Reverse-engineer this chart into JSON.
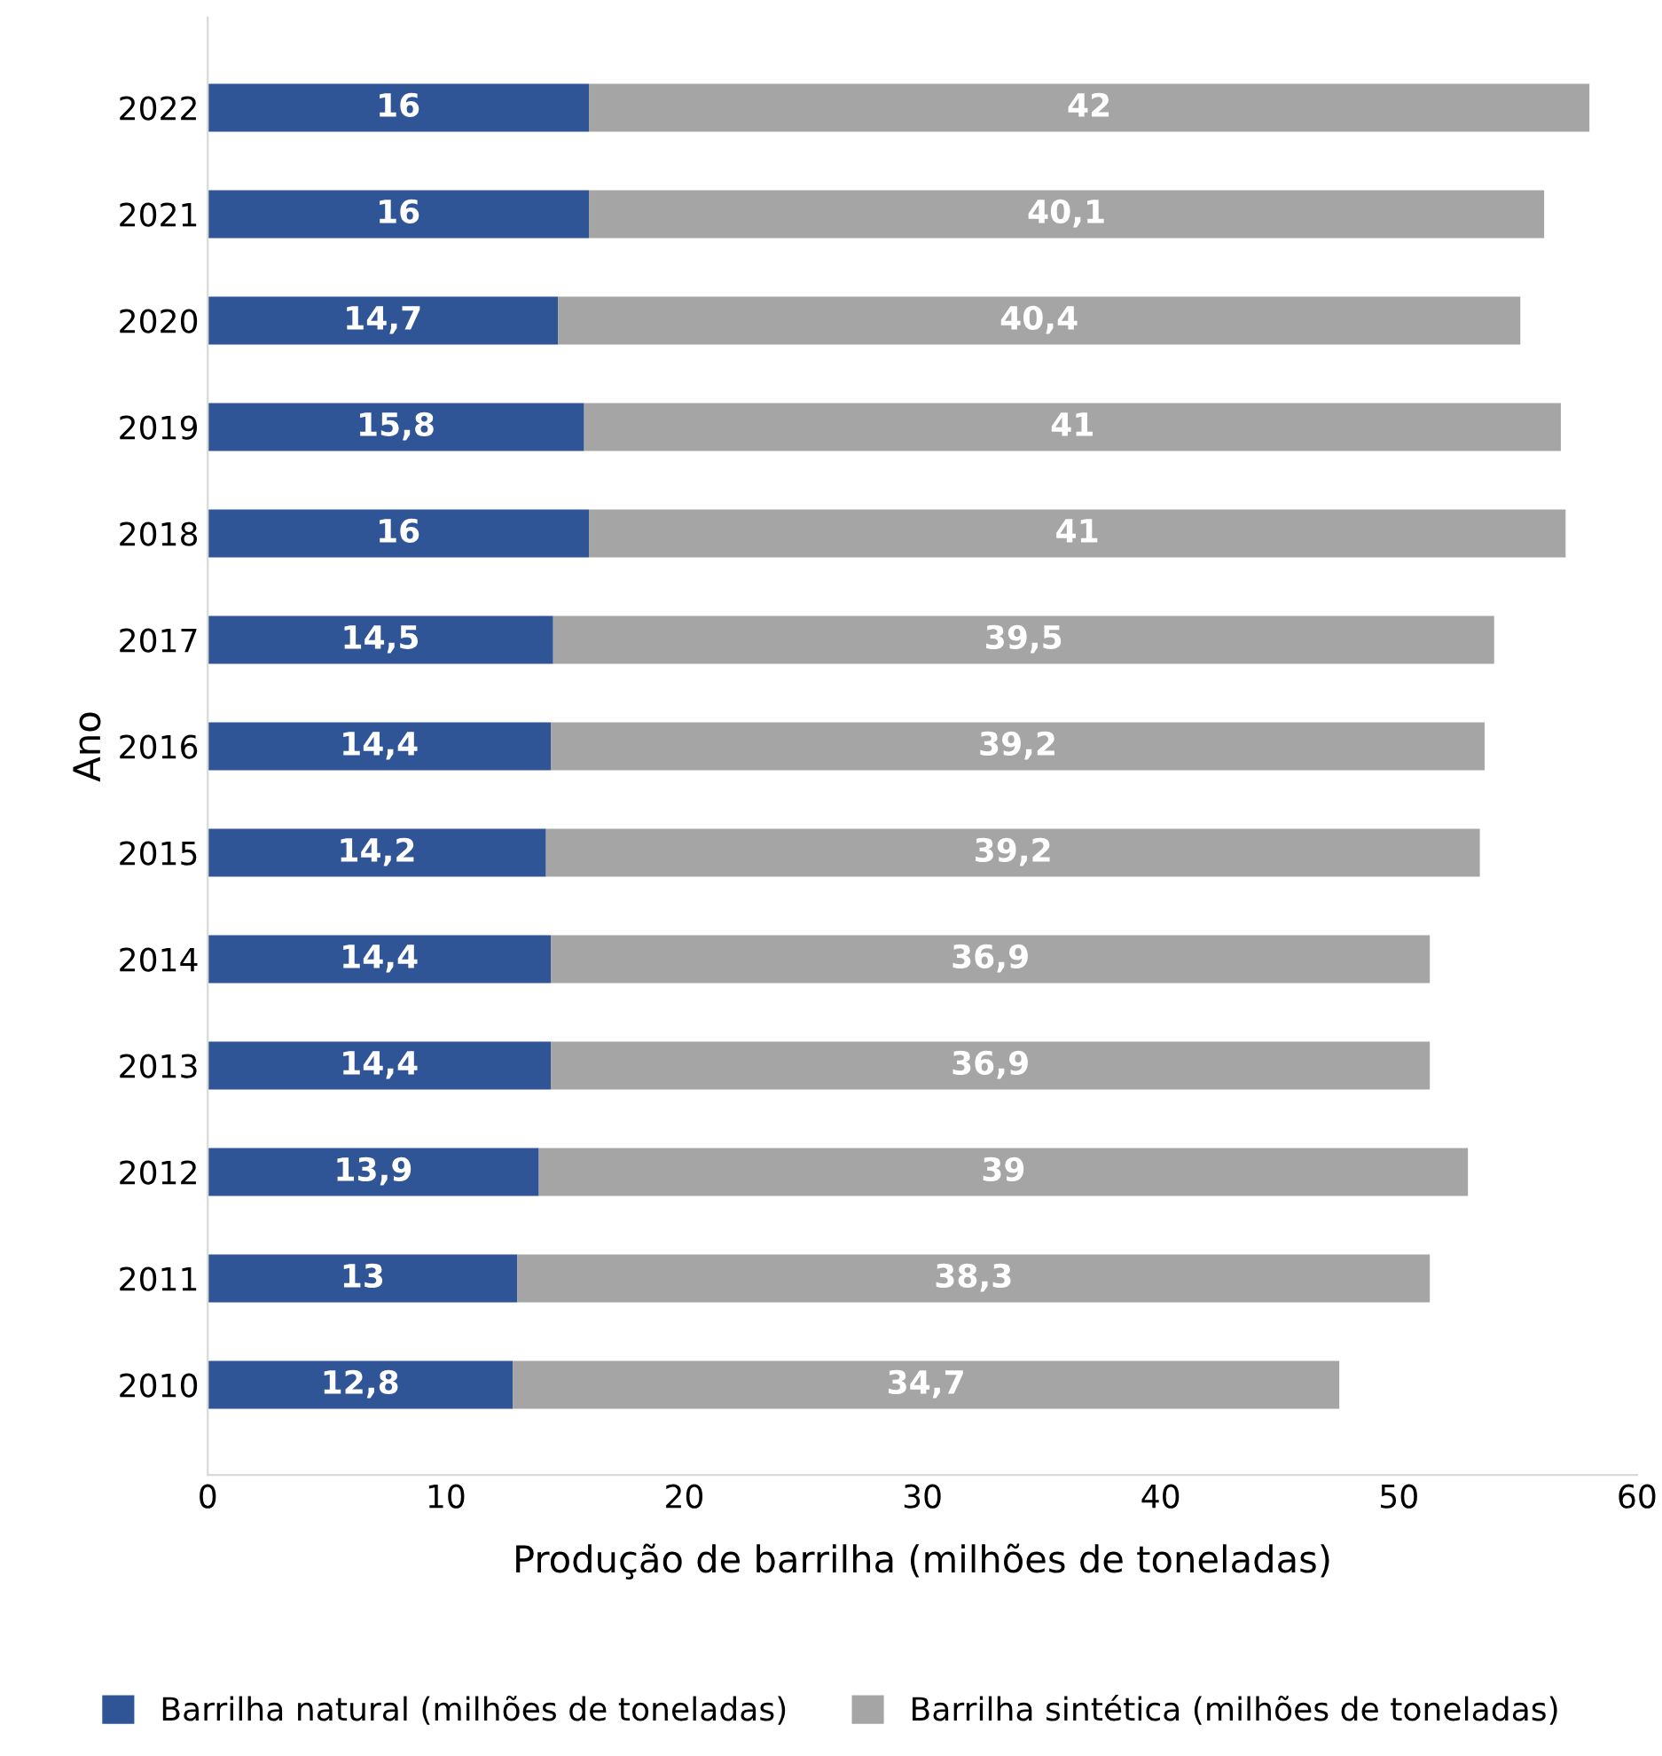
{
  "chart_data": {
    "type": "bar",
    "orientation": "horizontal",
    "stacked": true,
    "xlabel": "Produção de barrilha (milhões de toneladas)",
    "ylabel": "Ano",
    "categories": [
      "2022",
      "2021",
      "2020",
      "2019",
      "2018",
      "2017",
      "2016",
      "2015",
      "2014",
      "2013",
      "2012",
      "2011",
      "2010"
    ],
    "series": [
      {
        "name": "Barrilha natural (milhões de toneladas)",
        "color": "#2f5597",
        "values": [
          16,
          16,
          14.7,
          15.8,
          16,
          14.5,
          14.4,
          14.2,
          14.4,
          14.4,
          13.9,
          13,
          12.8
        ],
        "value_labels": [
          "16",
          "16",
          "14,7",
          "15,8",
          "16",
          "14,5",
          "14,4",
          "14,2",
          "14,4",
          "14,4",
          "13,9",
          "13",
          "12,8"
        ]
      },
      {
        "name": "Barrilha sintética (milhões de toneladas)",
        "color": "#a5a5a5",
        "values": [
          42,
          40.1,
          40.4,
          41,
          41,
          39.5,
          39.2,
          39.2,
          36.9,
          36.9,
          39,
          38.3,
          34.7
        ],
        "value_labels": [
          "42",
          "40,1",
          "40,4",
          "41",
          "41",
          "39,5",
          "39,2",
          "39,2",
          "36,9",
          "36,9",
          "39",
          "38,3",
          "34,7"
        ]
      }
    ],
    "xlim": [
      0,
      60
    ],
    "xticks": [
      0,
      10,
      20,
      30,
      40,
      50,
      60
    ],
    "grid": false,
    "legend": "bottom"
  }
}
